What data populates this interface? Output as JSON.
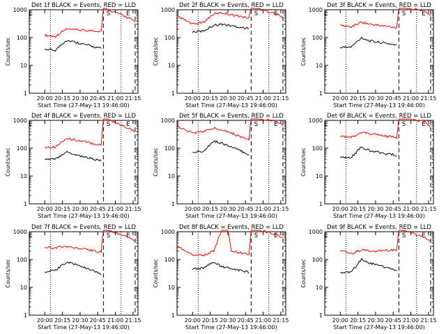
{
  "figure": {
    "background": "#ffffff",
    "event_color": "#000000",
    "lld_color": "#ff0000"
  },
  "chart_data": [
    {
      "type": "line",
      "title": "Det 1f BLACK = Events, RED = LLD",
      "xlabel": "Start Time (27-May-13 19:46:00)",
      "ylabel": "Counts/sec",
      "x_tick_labels": [
        "20:00",
        "20:15",
        "20:30",
        "20:45",
        "21:00",
        "21:15"
      ],
      "y_tick_labels": [
        "1",
        "10",
        "100",
        "1000"
      ],
      "y_scale": "log",
      "ylim": [
        1,
        1000
      ],
      "markers": [
        "E",
        "S",
        "E"
      ],
      "series": [
        {
          "values": [
            [
              20.0,
              120
            ],
            [
              20.15,
              110
            ],
            [
              20.3,
              200
            ],
            [
              20.42,
              190
            ],
            [
              20.8,
              170
            ],
            [
              20.83,
              1200
            ],
            [
              21.2,
              500
            ],
            [
              21.28,
              350
            ]
          ]
        },
        {
          "values": [
            [
              20.0,
              38
            ],
            [
              20.15,
              35
            ],
            [
              20.3,
              80
            ],
            [
              20.42,
              70
            ],
            [
              20.8,
              40
            ]
          ]
        }
      ]
    },
    {
      "type": "line",
      "title": "Det 2f BLACK = Events, RED = LLD",
      "xlabel": "Start Time (27-May-13 19:46:00)",
      "ylabel": "Counts/sec",
      "x_tick_labels": [
        "20:00",
        "20:15",
        "20:30",
        "20:45",
        "21:00",
        "21:15"
      ],
      "y_tick_labels": [
        "1",
        "10",
        "100",
        "1000"
      ],
      "y_scale": "log",
      "ylim": [
        1,
        1000
      ],
      "markers": [
        "S",
        "E"
      ],
      "series": [
        {
          "values": [
            [
              19.78,
              600
            ],
            [
              20.0,
              300
            ],
            [
              20.15,
              350
            ],
            [
              20.3,
              700
            ],
            [
              20.42,
              780
            ],
            [
              20.8,
              500
            ],
            [
              20.83,
              1300
            ],
            [
              21.2,
              700
            ],
            [
              21.28,
              500
            ]
          ]
        },
        {
          "values": [
            [
              20.0,
              160
            ],
            [
              20.15,
              170
            ],
            [
              20.3,
              280
            ],
            [
              20.42,
              300
            ],
            [
              20.8,
              210
            ]
          ]
        }
      ]
    },
    {
      "type": "line",
      "title": "Det 3f BLACK = Events, RED = LLD",
      "xlabel": "Start Time (27-May-13 19:46:00)",
      "ylabel": "Counts/sec",
      "x_tick_labels": [
        "20:00",
        "20:15",
        "20:30",
        "20:45",
        "21:00",
        "21:15"
      ],
      "y_tick_labels": [
        "1",
        "10",
        "100",
        "1000"
      ],
      "y_scale": "log",
      "ylim": [
        1,
        1000
      ],
      "markers": [
        "E",
        "S",
        "E"
      ],
      "series": [
        {
          "values": [
            [
              20.0,
              280
            ],
            [
              20.15,
              240
            ],
            [
              20.3,
              360
            ],
            [
              20.42,
              300
            ],
            [
              20.8,
              230
            ],
            [
              20.83,
              1300
            ],
            [
              21.2,
              900
            ],
            [
              21.28,
              600
            ]
          ]
        },
        {
          "values": [
            [
              20.0,
              45
            ],
            [
              20.15,
              45
            ],
            [
              20.3,
              100
            ],
            [
              20.42,
              75
            ],
            [
              20.8,
              55
            ]
          ]
        }
      ]
    },
    {
      "type": "line",
      "title": "Det 4f BLACK = Events, RED = LLD",
      "xlabel": "Start Time (27-May-13 19:46:00)",
      "ylabel": "Counts/sec",
      "x_tick_labels": [
        "20:00",
        "20:15",
        "20:30",
        "20:45",
        "21:00",
        "21:15"
      ],
      "y_tick_labels": [
        "1",
        "10",
        "100",
        "1000"
      ],
      "y_scale": "log",
      "ylim": [
        1,
        1000
      ],
      "markers": [
        "E",
        "S",
        "E"
      ],
      "series": [
        {
          "values": [
            [
              20.0,
              110
            ],
            [
              20.15,
              110
            ],
            [
              20.3,
              220
            ],
            [
              20.42,
              200
            ],
            [
              20.8,
              130
            ],
            [
              20.83,
              1300
            ],
            [
              21.2,
              500
            ],
            [
              21.28,
              380
            ]
          ]
        },
        {
          "values": [
            [
              20.0,
              40
            ],
            [
              20.15,
              40
            ],
            [
              20.3,
              75
            ],
            [
              20.42,
              60
            ],
            [
              20.8,
              35
            ]
          ]
        }
      ]
    },
    {
      "type": "line",
      "title": "Det 5f BLACK = Events, RED = LLD",
      "xlabel": "Start Time (27-May-13 19:46:00)",
      "ylabel": "Counts/sec",
      "x_tick_labels": [
        "20:00",
        "20:15",
        "20:30",
        "20:45",
        "21:00",
        "21:15"
      ],
      "y_tick_labels": [
        "1",
        "10",
        "100",
        "1000"
      ],
      "y_scale": "log",
      "ylim": [
        1,
        1000
      ],
      "markers": [
        "S",
        "E"
      ],
      "series": [
        {
          "values": [
            [
              19.78,
              620
            ],
            [
              20.0,
              350
            ],
            [
              20.15,
              400
            ],
            [
              20.3,
              520
            ],
            [
              20.42,
              470
            ],
            [
              20.8,
              200
            ],
            [
              20.83,
              1300
            ],
            [
              21.2,
              900
            ],
            [
              21.28,
              700
            ]
          ]
        },
        {
          "values": [
            [
              20.0,
              70
            ],
            [
              20.15,
              80
            ],
            [
              20.3,
              180
            ],
            [
              20.42,
              150
            ],
            [
              20.8,
              60
            ]
          ]
        }
      ]
    },
    {
      "type": "line",
      "title": "Det 6f BLACK = Events, RED = LLD",
      "xlabel": "Start Time (27-May-13 19:46:00)",
      "ylabel": "Counts/sec",
      "x_tick_labels": [
        "20:00",
        "20:15",
        "20:30",
        "20:45",
        "21:00",
        "21:15"
      ],
      "y_tick_labels": [
        "1",
        "10",
        "100",
        "1000"
      ],
      "y_scale": "log",
      "ylim": [
        1,
        1000
      ],
      "markers": [
        "E",
        "S",
        "E"
      ],
      "series": [
        {
          "values": [
            [
              20.0,
              280
            ],
            [
              20.15,
              240
            ],
            [
              20.3,
              360
            ],
            [
              20.42,
              330
            ],
            [
              20.8,
              240
            ],
            [
              20.83,
              1300
            ],
            [
              21.2,
              900
            ],
            [
              21.28,
              600
            ]
          ]
        },
        {
          "values": [
            [
              20.0,
              45
            ],
            [
              20.15,
              45
            ],
            [
              20.3,
              110
            ],
            [
              20.42,
              80
            ],
            [
              20.8,
              55
            ]
          ]
        }
      ]
    },
    {
      "type": "line",
      "title": "Det 7f BLACK = Events, RED = LLD",
      "xlabel": "Start Time (27-May-13 19:46:00)",
      "ylabel": "Counts/sec",
      "x_tick_labels": [
        "20:00",
        "20:15",
        "20:30",
        "20:45",
        "21:00",
        "21:15"
      ],
      "y_tick_labels": [
        "1",
        "10",
        "100",
        "1000"
      ],
      "y_scale": "log",
      "ylim": [
        1,
        1000
      ],
      "markers": [
        "E",
        "S",
        "E"
      ],
      "series": [
        {
          "values": [
            [
              20.0,
              280
            ],
            [
              20.15,
              260
            ],
            [
              20.3,
              300
            ],
            [
              20.42,
              260
            ],
            [
              20.8,
              190
            ],
            [
              20.83,
              1300
            ],
            [
              21.2,
              600
            ],
            [
              21.28,
              480
            ]
          ]
        },
        {
          "values": [
            [
              20.0,
              35
            ],
            [
              20.15,
              40
            ],
            [
              20.3,
              80
            ],
            [
              20.42,
              70
            ],
            [
              20.8,
              30
            ]
          ]
        }
      ]
    },
    {
      "type": "line",
      "title": "Det 8f BLACK = Events, RED = LLD",
      "xlabel": "Start Time (27-May-13 19:46:00)",
      "ylabel": "Counts/sec",
      "x_tick_labels": [
        "20:00",
        "20:15",
        "20:30",
        "20:45",
        "21:00",
        "21:15"
      ],
      "y_tick_labels": [
        "1",
        "10",
        "100",
        "1000"
      ],
      "y_scale": "log",
      "ylim": [
        1,
        1000
      ],
      "markers": [
        "S",
        "E"
      ],
      "series": [
        {
          "values": [
            [
              19.78,
              300
            ],
            [
              20.0,
              150
            ],
            [
              20.15,
              140
            ],
            [
              20.3,
              200
            ],
            [
              20.42,
              1300
            ],
            [
              20.5,
              1300
            ],
            [
              20.55,
              200
            ],
            [
              20.8,
              150
            ],
            [
              20.83,
              1300
            ],
            [
              21.2,
              800
            ],
            [
              21.28,
              600
            ]
          ]
        },
        {
          "values": [
            [
              20.0,
              45
            ],
            [
              20.15,
              50
            ],
            [
              20.3,
              80
            ],
            [
              20.42,
              55
            ],
            [
              20.8,
              35
            ]
          ]
        }
      ]
    },
    {
      "type": "line",
      "title": "Det 9f BLACK = Events, RED = LLD",
      "xlabel": "Start Time (27-May-13 19:46:00)",
      "ylabel": "Counts/sec",
      "x_tick_labels": [
        "20:00",
        "20:15",
        "20:30",
        "20:45",
        "21:00",
        "21:15"
      ],
      "y_tick_labels": [
        "1",
        "10",
        "100",
        "1000"
      ],
      "y_scale": "log",
      "ylim": [
        1,
        1000
      ],
      "markers": [
        "E",
        "S",
        "E"
      ],
      "series": [
        {
          "values": [
            [
              20.0,
              220
            ],
            [
              20.15,
              160
            ],
            [
              20.3,
              220
            ],
            [
              20.42,
              200
            ],
            [
              20.8,
              220
            ],
            [
              20.83,
              1300
            ],
            [
              21.2,
              600
            ],
            [
              21.28,
              450
            ]
          ]
        },
        {
          "values": [
            [
              20.0,
              35
            ],
            [
              20.15,
              35
            ],
            [
              20.3,
              100
            ],
            [
              20.42,
              75
            ],
            [
              20.8,
              40
            ]
          ]
        }
      ]
    }
  ]
}
